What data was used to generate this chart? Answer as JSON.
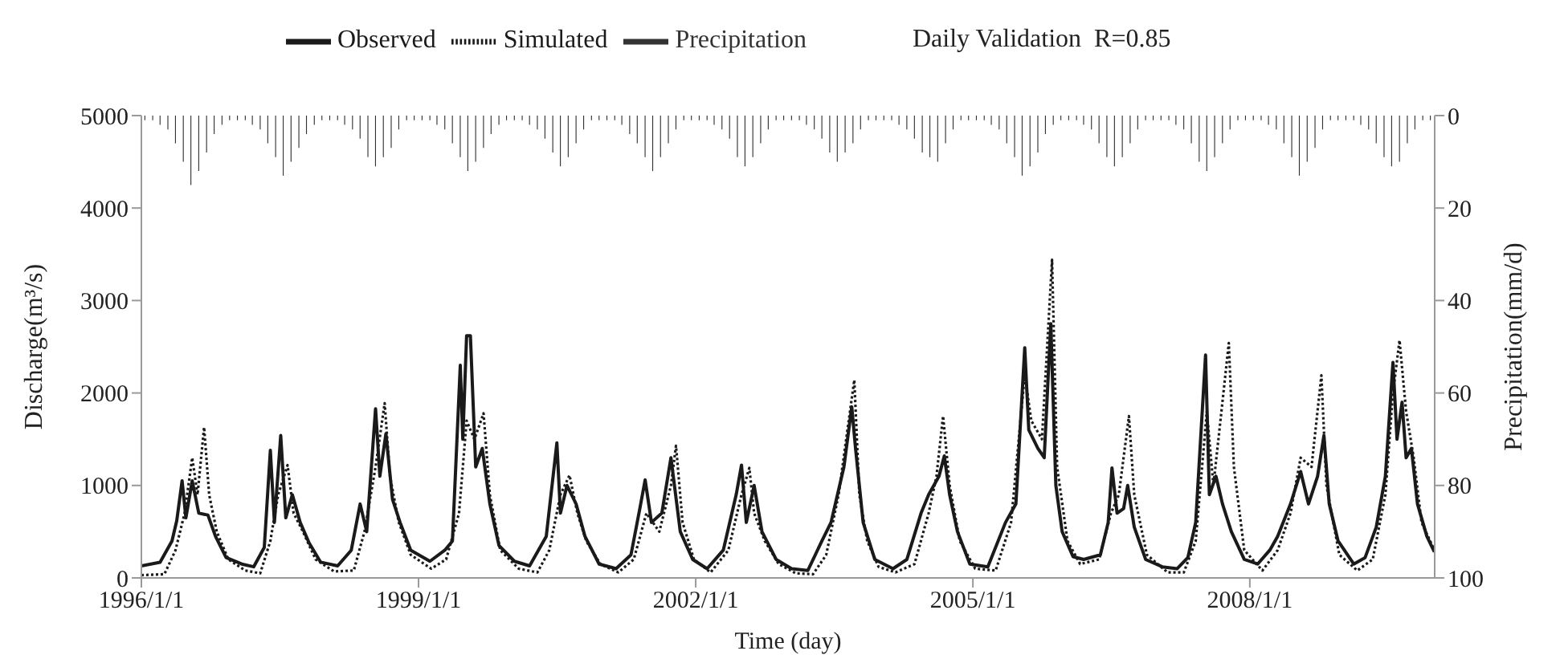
{
  "chart_data": {
    "type": "line",
    "title": "Daily Validation  R=0.85",
    "xlabel": "Time (day)",
    "ylabel": "Discharge(m³/s)",
    "y2label": "Precipitation(mm/d)",
    "xlim": [
      "1996-01-01",
      "2010-01-01"
    ],
    "xticks": [
      {
        "value": "1996-01-01",
        "label": "1996/1/1"
      },
      {
        "value": "1999-01-01",
        "label": "1999/1/1"
      },
      {
        "value": "2002-01-01",
        "label": "2002/1/1"
      },
      {
        "value": "2005-01-01",
        "label": "2005/1/1"
      },
      {
        "value": "2008-01-01",
        "label": "2008/1/1"
      }
    ],
    "ylim": [
      0,
      5000
    ],
    "yticks": [
      0,
      1000,
      2000,
      3000,
      4000,
      5000
    ],
    "y2lim": [
      100,
      0
    ],
    "y2ticks": [
      0,
      20,
      40,
      60,
      80,
      100
    ],
    "legend": "top",
    "marker": "none",
    "series": [
      {
        "name": "Observed",
        "color": "#1a1a1a",
        "line_style": "solid",
        "x": [
          "1996-01-01",
          "1996-03-15",
          "1996-05-01",
          "1996-05-20",
          "1996-06-10",
          "1996-06-25",
          "1996-07-20",
          "1996-08-15",
          "1996-09-20",
          "1996-10-20",
          "1996-12-01",
          "1997-02-01",
          "1997-03-20",
          "1997-05-01",
          "1997-05-25",
          "1997-06-10",
          "1997-07-05",
          "1997-07-25",
          "1997-08-20",
          "1997-09-20",
          "1997-10-25",
          "1997-12-10",
          "1998-02-15",
          "1998-04-10",
          "1998-05-15",
          "1998-06-10",
          "1998-07-15",
          "1998-08-01",
          "1998-08-25",
          "1998-09-20",
          "1998-10-20",
          "1998-12-01",
          "1999-02-15",
          "1999-04-15",
          "1999-05-15",
          "1999-06-15",
          "1999-06-25",
          "1999-07-10",
          "1999-07-25",
          "1999-08-15",
          "1999-09-10",
          "1999-10-10",
          "1999-11-15",
          "2000-01-15",
          "2000-03-15",
          "2000-05-20",
          "2000-07-01",
          "2000-07-15",
          "2000-08-10",
          "2000-09-15",
          "2000-10-20",
          "2000-12-15",
          "2001-02-20",
          "2001-04-20",
          "2001-05-25",
          "2001-06-15",
          "2001-07-10",
          "2001-08-20",
          "2001-09-25",
          "2001-11-01",
          "2001-12-20",
          "2002-02-15",
          "2002-04-20",
          "2002-06-10",
          "2002-07-01",
          "2002-07-20",
          "2002-08-20",
          "2002-09-20",
          "2002-11-15",
          "2003-01-15",
          "2003-03-20",
          "2003-05-15",
          "2003-06-20",
          "2003-08-10",
          "2003-09-10",
          "2003-09-25",
          "2003-10-25",
          "2003-12-10",
          "2004-02-20",
          "2004-04-15",
          "2004-06-10",
          "2004-07-10",
          "2004-08-20",
          "2004-09-10",
          "2004-10-01",
          "2004-11-01",
          "2004-12-20",
          "2005-03-01",
          "2005-05-10",
          "2005-06-20",
          "2005-07-25",
          "2005-08-10",
          "2005-09-15",
          "2005-10-10",
          "2005-11-05",
          "2005-11-25",
          "2005-12-20",
          "2006-02-01",
          "2006-03-15",
          "2006-05-20",
          "2006-06-20",
          "2006-07-05",
          "2006-07-25",
          "2006-08-20",
          "2006-09-05",
          "2006-10-01",
          "2006-11-15",
          "2007-01-20",
          "2007-03-20",
          "2007-05-01",
          "2007-06-01",
          "2007-07-10",
          "2007-07-25",
          "2007-08-20",
          "2007-09-15",
          "2007-10-20",
          "2007-12-10",
          "2008-02-01",
          "2008-03-20",
          "2008-04-20",
          "2008-06-10",
          "2008-07-20",
          "2008-08-20",
          "2008-09-25",
          "2008-10-20",
          "2008-11-10",
          "2008-12-15",
          "2009-02-15",
          "2009-04-01",
          "2009-05-15",
          "2009-06-20",
          "2009-07-20",
          "2009-08-05",
          "2009-08-25",
          "2009-09-10",
          "2009-10-01",
          "2009-10-25",
          "2009-12-01",
          "2009-12-31"
        ],
        "values": [
          130,
          170,
          400,
          620,
          1050,
          650,
          1050,
          700,
          680,
          450,
          220,
          150,
          120,
          330,
          1380,
          600,
          1540,
          650,
          900,
          600,
          380,
          170,
          130,
          300,
          800,
          500,
          1830,
          1100,
          1560,
          850,
          600,
          300,
          180,
          300,
          400,
          2300,
          1500,
          2620,
          2620,
          1200,
          1400,
          800,
          350,
          180,
          130,
          450,
          1460,
          700,
          1000,
          800,
          450,
          150,
          100,
          250,
          750,
          1060,
          600,
          700,
          1300,
          500,
          200,
          100,
          300,
          900,
          1220,
          600,
          1000,
          500,
          200,
          100,
          80,
          400,
          600,
          1200,
          1850,
          1400,
          600,
          200,
          100,
          200,
          700,
          900,
          1100,
          1320,
          900,
          500,
          150,
          120,
          600,
          800,
          2490,
          1600,
          1400,
          1300,
          2750,
          1000,
          500,
          230,
          200,
          250,
          600,
          1190,
          700,
          750,
          1000,
          550,
          200,
          120,
          100,
          220,
          600,
          2410,
          900,
          1100,
          800,
          500,
          200,
          150,
          300,
          450,
          800,
          1150,
          800,
          1100,
          1540,
          800,
          400,
          150,
          220,
          550,
          1100,
          2330,
          1500,
          1900,
          1300,
          1400,
          800,
          450,
          280
        ]
      },
      {
        "name": "Simulated",
        "color": "#1a1a1a",
        "line_style": "dotted",
        "x": [
          "1996-01-01",
          "1996-04-01",
          "1996-05-15",
          "1996-06-20",
          "1996-07-20",
          "1996-08-10",
          "1996-09-05",
          "1996-09-25",
          "1996-10-25",
          "1996-12-10",
          "1997-02-15",
          "1997-04-15",
          "1997-05-25",
          "1997-06-25",
          "1997-08-01",
          "1997-08-25",
          "1997-10-01",
          "1997-11-20",
          "1998-02-01",
          "1998-04-20",
          "1998-06-01",
          "1998-07-15",
          "1998-08-20",
          "1998-09-10",
          "1998-10-15",
          "1998-12-01",
          "1999-02-20",
          "1999-04-20",
          "1999-06-10",
          "1999-07-10",
          "1999-08-10",
          "1999-09-15",
          "1999-10-10",
          "1999-11-20",
          "2000-02-01",
          "2000-04-15",
          "2000-06-01",
          "2000-07-15",
          "2000-08-20",
          "2000-09-20",
          "2000-10-25",
          "2000-12-20",
          "2001-03-01",
          "2001-05-01",
          "2001-06-20",
          "2001-08-10",
          "2001-09-25",
          "2001-10-15",
          "2001-11-10",
          "2001-12-25",
          "2002-03-01",
          "2002-05-10",
          "2002-07-01",
          "2002-08-01",
          "2002-08-20",
          "2002-10-01",
          "2002-11-25",
          "2003-02-01",
          "2003-04-10",
          "2003-06-01",
          "2003-07-20",
          "2003-09-20",
          "2003-10-10",
          "2003-11-10",
          "2003-12-25",
          "2004-03-01",
          "2004-05-15",
          "2004-07-10",
          "2004-08-10",
          "2004-09-05",
          "2004-10-01",
          "2004-11-10",
          "2005-01-10",
          "2005-04-01",
          "2005-06-01",
          "2005-07-25",
          "2005-08-20",
          "2005-10-01",
          "2005-11-10",
          "2005-11-30",
          "2006-01-10",
          "2006-03-01",
          "2006-05-15",
          "2006-07-01",
          "2006-08-01",
          "2006-09-10",
          "2006-10-01",
          "2006-11-20",
          "2007-02-10",
          "2007-04-15",
          "2007-06-01",
          "2007-07-15",
          "2007-08-10",
          "2007-10-10",
          "2007-10-30",
          "2007-12-10",
          "2008-02-20",
          "2008-04-20",
          "2008-06-10",
          "2008-07-20",
          "2008-09-01",
          "2008-10-10",
          "2008-10-30",
          "2008-12-20",
          "2009-03-01",
          "2009-05-01",
          "2009-06-20",
          "2009-07-20",
          "2009-08-15",
          "2009-09-10",
          "2009-10-10",
          "2009-11-10",
          "2009-12-31"
        ],
        "values": [
          30,
          40,
          300,
          700,
          1300,
          900,
          1630,
          900,
          500,
          200,
          80,
          50,
          400,
          900,
          1220,
          700,
          500,
          200,
          70,
          80,
          500,
          1200,
          1890,
          1100,
          600,
          250,
          100,
          200,
          700,
          1700,
          1500,
          1780,
          900,
          300,
          100,
          60,
          300,
          900,
          1110,
          700,
          400,
          150,
          60,
          200,
          700,
          500,
          1000,
          1430,
          600,
          200,
          60,
          300,
          900,
          1190,
          700,
          400,
          150,
          50,
          40,
          250,
          900,
          2140,
          900,
          400,
          120,
          60,
          150,
          700,
          1100,
          1750,
          1000,
          400,
          100,
          80,
          600,
          2200,
          1700,
          1500,
          3440,
          1200,
          400,
          150,
          200,
          700,
          900,
          1750,
          900,
          250,
          60,
          60,
          400,
          1800,
          1000,
          2540,
          1200,
          300,
          80,
          300,
          700,
          1300,
          1200,
          2190,
          1000,
          250,
          80,
          200,
          900,
          2000,
          2570,
          1800,
          1300,
          600,
          300
        ]
      },
      {
        "name": "Precipitation",
        "type": "bar",
        "axis": "y2",
        "color": "#333333",
        "x": [
          "1996-01-15",
          "1996-02-15",
          "1996-03-15",
          "1996-04-15",
          "1996-05-15",
          "1996-06-15",
          "1996-07-15",
          "1996-08-15",
          "1996-09-15",
          "1996-10-15",
          "1996-11-15",
          "1996-12-15",
          "1997-01-15",
          "1997-02-15",
          "1997-03-15",
          "1997-04-15",
          "1997-05-15",
          "1997-06-15",
          "1997-07-15",
          "1997-08-15",
          "1997-09-15",
          "1997-10-15",
          "1997-11-15",
          "1997-12-15",
          "1998-01-15",
          "1998-02-15",
          "1998-03-15",
          "1998-04-15",
          "1998-05-15",
          "1998-06-15",
          "1998-07-15",
          "1998-08-15",
          "1998-09-15",
          "1998-10-15",
          "1998-11-15",
          "1998-12-15",
          "1999-01-15",
          "1999-02-15",
          "1999-03-15",
          "1999-04-15",
          "1999-05-15",
          "1999-06-15",
          "1999-07-15",
          "1999-08-15",
          "1999-09-15",
          "1999-10-15",
          "1999-11-15",
          "1999-12-15",
          "2000-01-15",
          "2000-02-15",
          "2000-03-15",
          "2000-04-15",
          "2000-05-15",
          "2000-06-15",
          "2000-07-15",
          "2000-08-15",
          "2000-09-15",
          "2000-10-15",
          "2000-11-15",
          "2000-12-15",
          "2001-01-15",
          "2001-02-15",
          "2001-03-15",
          "2001-04-15",
          "2001-05-15",
          "2001-06-15",
          "2001-07-15",
          "2001-08-15",
          "2001-09-15",
          "2001-10-15",
          "2001-11-15",
          "2001-12-15",
          "2002-01-15",
          "2002-02-15",
          "2002-03-15",
          "2002-04-15",
          "2002-05-15",
          "2002-06-15",
          "2002-07-15",
          "2002-08-15",
          "2002-09-15",
          "2002-10-15",
          "2002-11-15",
          "2002-12-15",
          "2003-01-15",
          "2003-02-15",
          "2003-03-15",
          "2003-04-15",
          "2003-05-15",
          "2003-06-15",
          "2003-07-15",
          "2003-08-15",
          "2003-09-15",
          "2003-10-15",
          "2003-11-15",
          "2003-12-15",
          "2004-01-15",
          "2004-02-15",
          "2004-03-15",
          "2004-04-15",
          "2004-05-15",
          "2004-06-15",
          "2004-07-15",
          "2004-08-15",
          "2004-09-15",
          "2004-10-15",
          "2004-11-15",
          "2004-12-15",
          "2005-01-15",
          "2005-02-15",
          "2005-03-15",
          "2005-04-15",
          "2005-05-15",
          "2005-06-15",
          "2005-07-15",
          "2005-08-15",
          "2005-09-15",
          "2005-10-15",
          "2005-11-15",
          "2005-12-15",
          "2006-01-15",
          "2006-02-15",
          "2006-03-15",
          "2006-04-15",
          "2006-05-15",
          "2006-06-15",
          "2006-07-15",
          "2006-08-15",
          "2006-09-15",
          "2006-10-15",
          "2006-11-15",
          "2006-12-15",
          "2007-01-15",
          "2007-02-15",
          "2007-03-15",
          "2007-04-15",
          "2007-05-15",
          "2007-06-15",
          "2007-07-15",
          "2007-08-15",
          "2007-09-15",
          "2007-10-15",
          "2007-11-15",
          "2007-12-15",
          "2008-01-15",
          "2008-02-15",
          "2008-03-15",
          "2008-04-15",
          "2008-05-15",
          "2008-06-15",
          "2008-07-15",
          "2008-08-15",
          "2008-09-15",
          "2008-10-15",
          "2008-11-15",
          "2008-12-15",
          "2009-01-15",
          "2009-02-15",
          "2009-03-15",
          "2009-04-15",
          "2009-05-15",
          "2009-06-15",
          "2009-07-15",
          "2009-08-15",
          "2009-09-15",
          "2009-10-15",
          "2009-11-15",
          "2009-12-15"
        ],
        "values": [
          1,
          1,
          2,
          3,
          6,
          10,
          15,
          12,
          8,
          4,
          2,
          1,
          1,
          1,
          2,
          3,
          6,
          9,
          13,
          10,
          7,
          4,
          2,
          1,
          1,
          1,
          2,
          3,
          5,
          9,
          11,
          9,
          7,
          3,
          1,
          1,
          1,
          1,
          2,
          3,
          6,
          9,
          12,
          10,
          7,
          4,
          2,
          1,
          1,
          1,
          2,
          3,
          5,
          8,
          11,
          9,
          6,
          3,
          1,
          1,
          1,
          1,
          2,
          4,
          6,
          9,
          12,
          9,
          6,
          3,
          1,
          1,
          1,
          1,
          2,
          3,
          5,
          9,
          11,
          9,
          6,
          3,
          1,
          1,
          1,
          1,
          2,
          3,
          5,
          8,
          10,
          8,
          6,
          3,
          1,
          1,
          1,
          1,
          2,
          3,
          5,
          8,
          9,
          10,
          6,
          3,
          1,
          1,
          1,
          1,
          2,
          3,
          6,
          9,
          13,
          11,
          8,
          4,
          2,
          1,
          1,
          1,
          2,
          3,
          6,
          9,
          11,
          9,
          6,
          3,
          1,
          1,
          1,
          1,
          2,
          3,
          6,
          10,
          12,
          9,
          6,
          3,
          1,
          1,
          1,
          1,
          2,
          3,
          6,
          9,
          13,
          10,
          7,
          3,
          1,
          1,
          1,
          1,
          2,
          3,
          6,
          9,
          11,
          10,
          6,
          3,
          1,
          1
        ]
      }
    ]
  }
}
